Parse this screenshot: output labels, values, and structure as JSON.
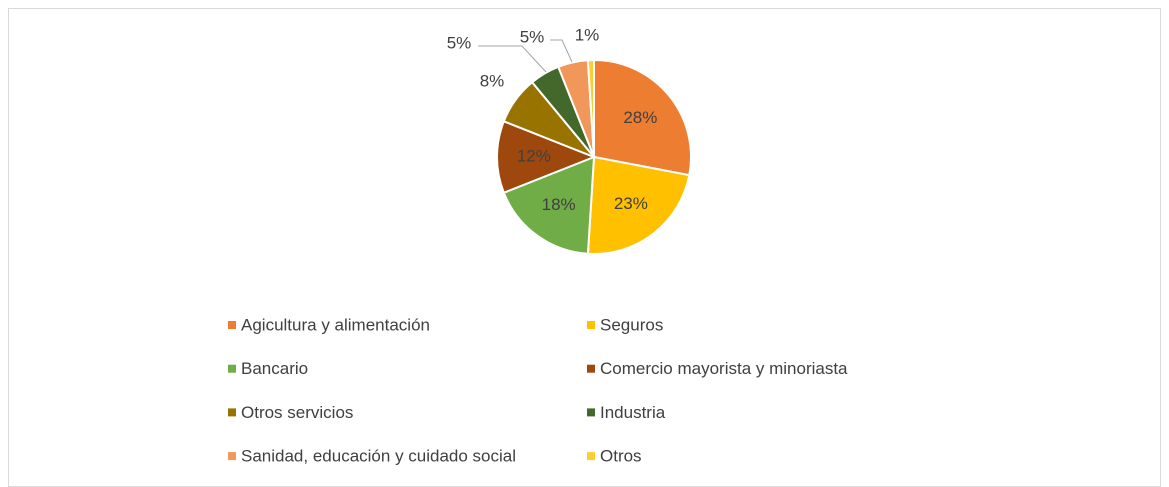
{
  "chart_data": {
    "type": "pie",
    "categories": [
      "Agicultura y alimentación",
      "Seguros",
      "Bancario",
      "Comercio mayorista y minoriasta",
      "Otros servicios",
      "Industria",
      "Sanidad, educación y cuidado social",
      "Otros"
    ],
    "values": [
      28,
      23,
      18,
      12,
      8,
      5,
      5,
      1
    ],
    "value_labels": [
      "28%",
      "23%",
      "18%",
      "12%",
      "8%",
      "5%",
      "5%",
      "1%"
    ],
    "colors": [
      "#ED7D31",
      "#FFC000",
      "#70AD47",
      "#9E480E",
      "#997300",
      "#43682B",
      "#F1975A",
      "#FFCD33"
    ],
    "legend": "bottom"
  }
}
